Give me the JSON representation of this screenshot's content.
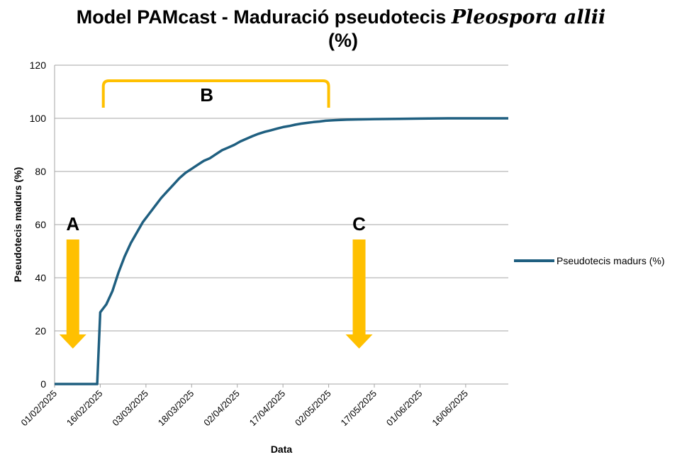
{
  "title": {
    "prefix": "Model PAMcast - Maduració pseudotecis ",
    "species": "Pleospora allii",
    "suffix": "(%)"
  },
  "chart_data": {
    "type": "line",
    "xlabel": "Data",
    "ylabel": "Pseudotecis madurs (%)",
    "ylim": [
      0,
      120
    ],
    "yticks": [
      0,
      20,
      40,
      60,
      80,
      100,
      120
    ],
    "x_range": [
      "01/02/2025",
      "30/06/2025"
    ],
    "xticks": [
      "01/02/2025",
      "16/02/2025",
      "03/03/2025",
      "18/03/2025",
      "02/04/2025",
      "17/04/2025",
      "02/05/2025",
      "17/05/2025",
      "01/06/2025",
      "16/06/2025"
    ],
    "grid": "horizontal",
    "legend_position": "right",
    "series": [
      {
        "name": "Pseudotecis madurs (%)",
        "color": "#1f5f80",
        "points": [
          [
            "01/02/2025",
            0
          ],
          [
            "15/02/2025",
            0
          ],
          [
            "16/02/2025",
            27
          ],
          [
            "18/02/2025",
            30
          ],
          [
            "20/02/2025",
            35
          ],
          [
            "22/02/2025",
            42
          ],
          [
            "24/02/2025",
            48
          ],
          [
            "26/02/2025",
            53
          ],
          [
            "28/02/2025",
            57
          ],
          [
            "02/03/2025",
            61
          ],
          [
            "04/03/2025",
            64
          ],
          [
            "06/03/2025",
            67
          ],
          [
            "08/03/2025",
            70
          ],
          [
            "10/03/2025",
            72.5
          ],
          [
            "12/03/2025",
            75
          ],
          [
            "14/03/2025",
            77.5
          ],
          [
            "16/03/2025",
            79.5
          ],
          [
            "18/03/2025",
            81
          ],
          [
            "20/03/2025",
            82.5
          ],
          [
            "22/03/2025",
            84
          ],
          [
            "24/03/2025",
            85
          ],
          [
            "26/03/2025",
            86.5
          ],
          [
            "28/03/2025",
            88
          ],
          [
            "30/03/2025",
            89
          ],
          [
            "01/04/2025",
            90
          ],
          [
            "03/04/2025",
            91.3
          ],
          [
            "05/04/2025",
            92.3
          ],
          [
            "07/04/2025",
            93.3
          ],
          [
            "09/04/2025",
            94.2
          ],
          [
            "11/04/2025",
            94.9
          ],
          [
            "13/04/2025",
            95.5
          ],
          [
            "15/04/2025",
            96.1
          ],
          [
            "17/04/2025",
            96.7
          ],
          [
            "19/04/2025",
            97.1
          ],
          [
            "21/04/2025",
            97.6
          ],
          [
            "23/04/2025",
            98
          ],
          [
            "25/04/2025",
            98.3
          ],
          [
            "27/04/2025",
            98.6
          ],
          [
            "29/04/2025",
            98.8
          ],
          [
            "01/05/2025",
            99.1
          ],
          [
            "04/05/2025",
            99.3
          ],
          [
            "08/05/2025",
            99.5
          ],
          [
            "12/05/2025",
            99.6
          ],
          [
            "17/05/2025",
            99.7
          ],
          [
            "25/05/2025",
            99.8
          ],
          [
            "01/06/2025",
            99.9
          ],
          [
            "10/06/2025",
            100
          ],
          [
            "30/06/2025",
            100
          ]
        ]
      }
    ],
    "annotations": {
      "bracket": {
        "label": "B",
        "color": "#ffc000",
        "from": "17/02/2025",
        "to": "02/05/2025"
      },
      "arrows": [
        {
          "label": "A",
          "color": "#ffc000",
          "date": "07/02/2025"
        },
        {
          "label": "C",
          "color": "#ffc000",
          "date": "12/05/2025"
        }
      ]
    }
  }
}
